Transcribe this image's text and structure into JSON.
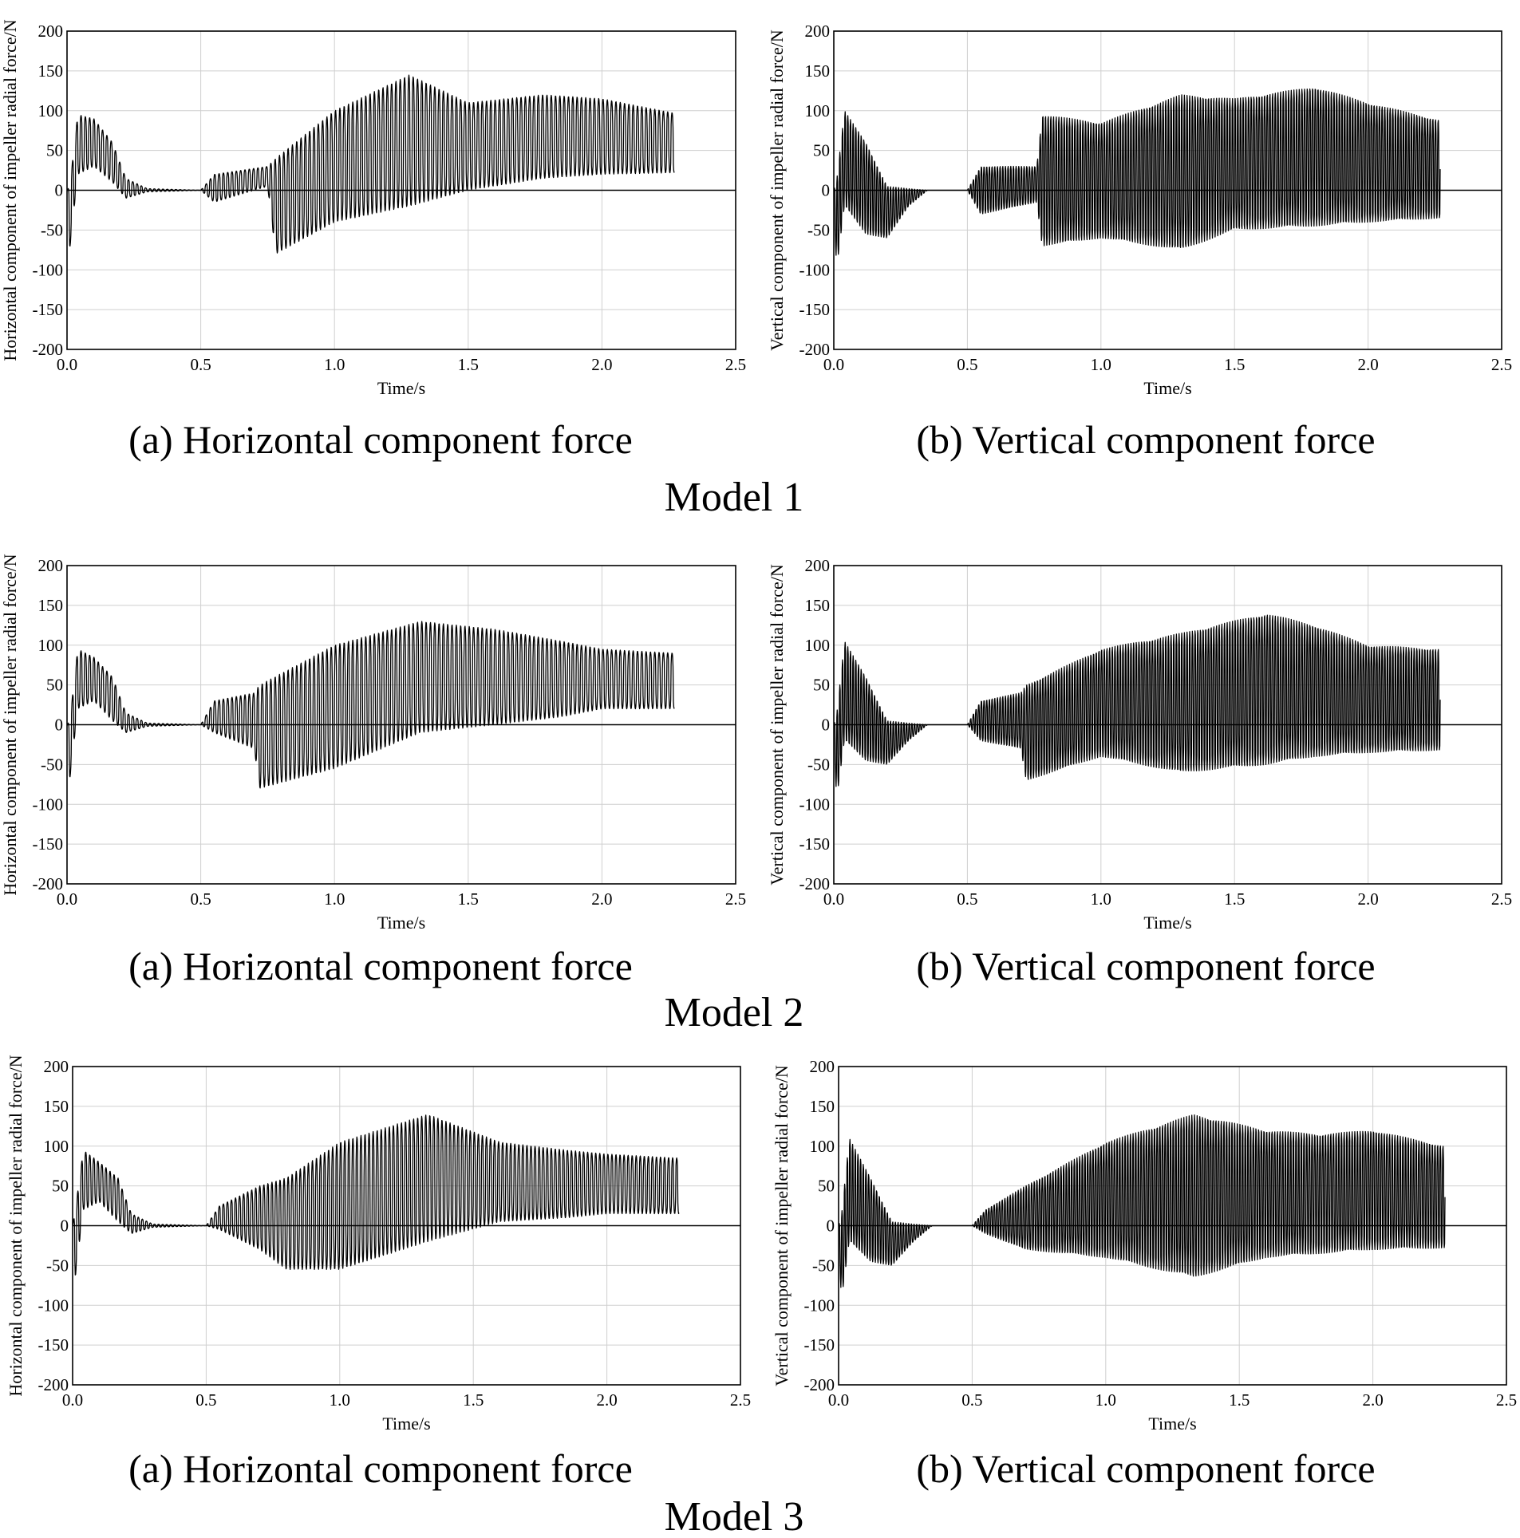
{
  "figure": {
    "panels": [
      {
        "model_index": 0,
        "caption": "(a) Horizontal component force",
        "ylabel": "Horizontal component of impeller radial force/N",
        "xlabel": "Time/s"
      },
      {
        "model_index": 0,
        "caption": "(b) Vertical component force",
        "ylabel": "Vertical component of impeller radial force/N",
        "xlabel": "Time/s"
      },
      {
        "model_index": 1,
        "caption": "(a) Horizontal component force",
        "ylabel": "Horizontal component of impeller radial force/N",
        "xlabel": "Time/s"
      },
      {
        "model_index": 1,
        "caption": "(b) Vertical component force",
        "ylabel": "Vertical component of impeller radial force/N",
        "xlabel": "Time/s"
      },
      {
        "model_index": 2,
        "caption": "(a) Horizontal component force",
        "ylabel": "Horizontal component of impeller radial force/N",
        "xlabel": "Time/s"
      },
      {
        "model_index": 2,
        "caption": "(b) Vertical component force",
        "ylabel": "Vertical component of impeller radial force/N",
        "xlabel": "Time/s"
      }
    ],
    "model_titles": [
      "Model 1",
      "Model 2",
      "Model 3"
    ]
  },
  "chart_data": [
    {
      "type": "line",
      "model": "Model 1",
      "component": "horizontal",
      "xlabel": "Time/s",
      "ylabel": "Horizontal component of impeller radial force/N",
      "xlim": [
        0.0,
        2.5
      ],
      "ylim": [
        -200,
        200
      ],
      "xticks": [
        "0.0",
        "0.5",
        "1.0",
        "1.5",
        "2.0",
        "2.5"
      ],
      "yticks": [
        "200",
        "150",
        "100",
        "50",
        "0",
        "-50",
        "-100",
        "-150",
        "-200"
      ],
      "grid": true,
      "x_end": 2.27,
      "envelope": [
        {
          "t": 0.0,
          "max": 0,
          "min": 0
        },
        {
          "t": 0.01,
          "max": 5,
          "min": -75
        },
        {
          "t": 0.04,
          "max": 95,
          "min": 20
        },
        {
          "t": 0.1,
          "max": 90,
          "min": 30
        },
        {
          "t": 0.17,
          "max": 60,
          "min": 10
        },
        {
          "t": 0.22,
          "max": 15,
          "min": -10
        },
        {
          "t": 0.3,
          "max": 2,
          "min": -2
        },
        {
          "t": 0.5,
          "max": 0,
          "min": 0
        },
        {
          "t": 0.55,
          "max": 20,
          "min": -15
        },
        {
          "t": 0.75,
          "max": 30,
          "min": 5
        },
        {
          "t": 0.78,
          "max": 40,
          "min": -80
        },
        {
          "t": 1.0,
          "max": 100,
          "min": -40
        },
        {
          "t": 1.28,
          "max": 145,
          "min": -20
        },
        {
          "t": 1.5,
          "max": 110,
          "min": 0
        },
        {
          "t": 1.78,
          "max": 120,
          "min": 15
        },
        {
          "t": 2.0,
          "max": 115,
          "min": 20
        },
        {
          "t": 2.27,
          "max": 97,
          "min": 22
        }
      ]
    },
    {
      "type": "line",
      "model": "Model 1",
      "component": "vertical",
      "xlabel": "Time/s",
      "ylabel": "Vertical component of impeller radial force/N",
      "xlim": [
        0.0,
        2.5
      ],
      "ylim": [
        -200,
        200
      ],
      "xticks": [
        "0.0",
        "0.5",
        "1.0",
        "1.5",
        "2.0",
        "2.5"
      ],
      "yticks": [
        "200",
        "150",
        "100",
        "50",
        "0",
        "-50",
        "-100",
        "-150",
        "-200"
      ],
      "grid": true,
      "x_end": 2.27,
      "envelope": [
        {
          "t": 0.0,
          "max": 0,
          "min": 0
        },
        {
          "t": 0.01,
          "max": 10,
          "min": -100
        },
        {
          "t": 0.04,
          "max": 100,
          "min": -20
        },
        {
          "t": 0.12,
          "max": 60,
          "min": -55
        },
        {
          "t": 0.2,
          "max": 5,
          "min": -60
        },
        {
          "t": 0.28,
          "max": 2,
          "min": -20
        },
        {
          "t": 0.35,
          "max": 0,
          "min": 0
        },
        {
          "t": 0.5,
          "max": 0,
          "min": 0
        },
        {
          "t": 0.55,
          "max": 30,
          "min": -30
        },
        {
          "t": 0.76,
          "max": 30,
          "min": -15
        },
        {
          "t": 0.78,
          "max": 95,
          "min": -70
        },
        {
          "t": 1.0,
          "max": 85,
          "min": -60
        },
        {
          "t": 1.3,
          "max": 120,
          "min": -75
        },
        {
          "t": 1.5,
          "max": 115,
          "min": -50
        },
        {
          "t": 1.8,
          "max": 130,
          "min": -45
        },
        {
          "t": 2.0,
          "max": 110,
          "min": -40
        },
        {
          "t": 2.27,
          "max": 88,
          "min": -35
        }
      ]
    },
    {
      "type": "line",
      "model": "Model 2",
      "component": "horizontal",
      "xlabel": "Time/s",
      "ylabel": "Horizontal component of impeller radial force/N",
      "xlim": [
        0.0,
        2.5
      ],
      "ylim": [
        -200,
        200
      ],
      "xticks": [
        "0.0",
        "0.5",
        "1.0",
        "1.5",
        "2.0",
        "2.5"
      ],
      "yticks": [
        "200",
        "150",
        "100",
        "50",
        "0",
        "-50",
        "-100",
        "-150",
        "-200"
      ],
      "grid": true,
      "x_end": 2.27,
      "envelope": [
        {
          "t": 0.0,
          "max": 0,
          "min": 0
        },
        {
          "t": 0.01,
          "max": 5,
          "min": -70
        },
        {
          "t": 0.04,
          "max": 95,
          "min": 20
        },
        {
          "t": 0.1,
          "max": 85,
          "min": 30
        },
        {
          "t": 0.17,
          "max": 60,
          "min": 5
        },
        {
          "t": 0.22,
          "max": 15,
          "min": -10
        },
        {
          "t": 0.3,
          "max": 2,
          "min": -2
        },
        {
          "t": 0.5,
          "max": 0,
          "min": 0
        },
        {
          "t": 0.55,
          "max": 30,
          "min": -10
        },
        {
          "t": 0.7,
          "max": 40,
          "min": -30
        },
        {
          "t": 0.72,
          "max": 50,
          "min": -80
        },
        {
          "t": 1.0,
          "max": 100,
          "min": -55
        },
        {
          "t": 1.32,
          "max": 130,
          "min": -10
        },
        {
          "t": 1.6,
          "max": 120,
          "min": 0
        },
        {
          "t": 1.85,
          "max": 105,
          "min": 10
        },
        {
          "t": 2.0,
          "max": 95,
          "min": 20
        },
        {
          "t": 2.27,
          "max": 90,
          "min": 20
        }
      ]
    },
    {
      "type": "line",
      "model": "Model 2",
      "component": "vertical",
      "xlabel": "Time/s",
      "ylabel": "Vertical component of impeller radial force/N",
      "xlim": [
        0.0,
        2.5
      ],
      "ylim": [
        -200,
        200
      ],
      "xticks": [
        "0.0",
        "0.5",
        "1.0",
        "1.5",
        "2.0",
        "2.5"
      ],
      "yticks": [
        "200",
        "150",
        "100",
        "50",
        "0",
        "-50",
        "-100",
        "-150",
        "-200"
      ],
      "grid": true,
      "x_end": 2.27,
      "envelope": [
        {
          "t": 0.0,
          "max": 0,
          "min": 0
        },
        {
          "t": 0.01,
          "max": 10,
          "min": -95
        },
        {
          "t": 0.04,
          "max": 105,
          "min": -20
        },
        {
          "t": 0.12,
          "max": 60,
          "min": -45
        },
        {
          "t": 0.2,
          "max": 5,
          "min": -50
        },
        {
          "t": 0.28,
          "max": 2,
          "min": -20
        },
        {
          "t": 0.35,
          "max": 0,
          "min": 0
        },
        {
          "t": 0.5,
          "max": 0,
          "min": 0
        },
        {
          "t": 0.55,
          "max": 30,
          "min": -20
        },
        {
          "t": 0.7,
          "max": 40,
          "min": -30
        },
        {
          "t": 0.72,
          "max": 50,
          "min": -70
        },
        {
          "t": 1.0,
          "max": 95,
          "min": -40
        },
        {
          "t": 1.3,
          "max": 115,
          "min": -60
        },
        {
          "t": 1.62,
          "max": 140,
          "min": -50
        },
        {
          "t": 1.8,
          "max": 125,
          "min": -40
        },
        {
          "t": 2.0,
          "max": 100,
          "min": -35
        },
        {
          "t": 2.27,
          "max": 95,
          "min": -32
        }
      ]
    },
    {
      "type": "line",
      "model": "Model 3",
      "component": "horizontal",
      "xlabel": "Time/s",
      "ylabel": "Horizontal component of impeller radial force/N",
      "xlim": [
        0.0,
        2.5
      ],
      "ylim": [
        -200,
        200
      ],
      "xticks": [
        "0.0",
        "0.5",
        "1.0",
        "1.5",
        "2.0",
        "2.5"
      ],
      "yticks": [
        "200",
        "150",
        "100",
        "50",
        "0",
        "-50",
        "-100",
        "-150",
        "-200"
      ],
      "grid": true,
      "x_end": 2.27,
      "envelope": [
        {
          "t": 0.0,
          "max": 0,
          "min": 0
        },
        {
          "t": 0.01,
          "max": 20,
          "min": -65
        },
        {
          "t": 0.04,
          "max": 95,
          "min": 20
        },
        {
          "t": 0.1,
          "max": 80,
          "min": 30
        },
        {
          "t": 0.17,
          "max": 60,
          "min": 5
        },
        {
          "t": 0.22,
          "max": 15,
          "min": -10
        },
        {
          "t": 0.3,
          "max": 2,
          "min": -2
        },
        {
          "t": 0.5,
          "max": 0,
          "min": 0
        },
        {
          "t": 0.55,
          "max": 25,
          "min": -5
        },
        {
          "t": 0.7,
          "max": 50,
          "min": -30
        },
        {
          "t": 0.8,
          "max": 60,
          "min": -55
        },
        {
          "t": 1.0,
          "max": 105,
          "min": -55
        },
        {
          "t": 1.33,
          "max": 140,
          "min": -20
        },
        {
          "t": 1.6,
          "max": 105,
          "min": 5
        },
        {
          "t": 1.85,
          "max": 95,
          "min": 10
        },
        {
          "t": 2.0,
          "max": 90,
          "min": 15
        },
        {
          "t": 2.27,
          "max": 85,
          "min": 15
        }
      ]
    },
    {
      "type": "line",
      "model": "Model 3",
      "component": "vertical",
      "xlabel": "Time/s",
      "ylabel": "Vertical component of impeller radial force/N",
      "xlim": [
        0.0,
        2.5
      ],
      "ylim": [
        -200,
        200
      ],
      "xticks": [
        "0.0",
        "0.5",
        "1.0",
        "1.5",
        "2.0",
        "2.5"
      ],
      "yticks": [
        "200",
        "150",
        "100",
        "50",
        "0",
        "-50",
        "-100",
        "-150",
        "-200"
      ],
      "grid": true,
      "x_end": 2.27,
      "envelope": [
        {
          "t": 0.0,
          "max": 0,
          "min": 0
        },
        {
          "t": 0.01,
          "max": 10,
          "min": -95
        },
        {
          "t": 0.04,
          "max": 110,
          "min": -20
        },
        {
          "t": 0.12,
          "max": 60,
          "min": -45
        },
        {
          "t": 0.2,
          "max": 5,
          "min": -50
        },
        {
          "t": 0.28,
          "max": 2,
          "min": -20
        },
        {
          "t": 0.35,
          "max": 0,
          "min": 0
        },
        {
          "t": 0.5,
          "max": 0,
          "min": 0
        },
        {
          "t": 0.55,
          "max": 20,
          "min": -10
        },
        {
          "t": 0.7,
          "max": 50,
          "min": -30
        },
        {
          "t": 1.0,
          "max": 105,
          "min": -40
        },
        {
          "t": 1.33,
          "max": 140,
          "min": -65
        },
        {
          "t": 1.6,
          "max": 120,
          "min": -40
        },
        {
          "t": 1.8,
          "max": 115,
          "min": -35
        },
        {
          "t": 2.0,
          "max": 120,
          "min": -30
        },
        {
          "t": 2.27,
          "max": 100,
          "min": -28
        }
      ]
    }
  ]
}
